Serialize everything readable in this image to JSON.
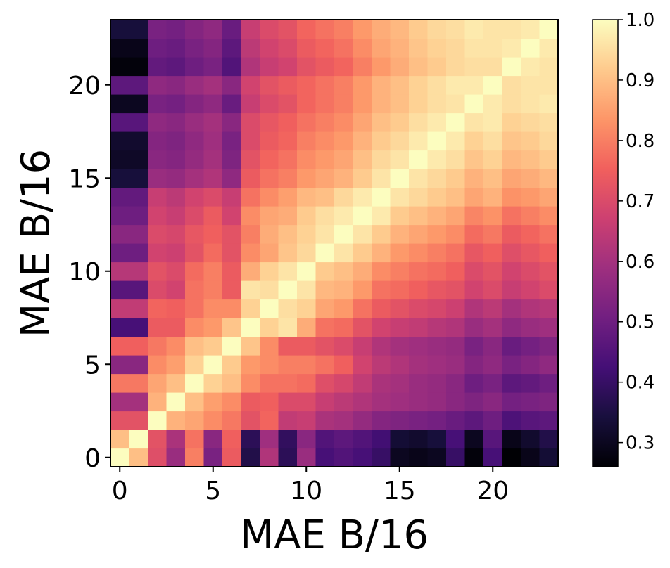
{
  "chart_data": {
    "type": "heatmap",
    "title": "",
    "xlabel": "MAE B/16",
    "ylabel": "MAE B/16",
    "n_rows": 24,
    "n_cols": 24,
    "origin": "lower",
    "xlim": [
      -0.5,
      23.5
    ],
    "ylim": [
      -0.5,
      23.5
    ],
    "x_ticks": [
      0,
      5,
      10,
      15,
      20
    ],
    "y_ticks": [
      0,
      5,
      10,
      15,
      20
    ],
    "colormap": "magma",
    "colormap_stops": [
      "#000004",
      "#180f3d",
      "#440f76",
      "#721f81",
      "#9e2f7f",
      "#cd4071",
      "#f1605d",
      "#fd9668",
      "#feca8d",
      "#fcfdbf"
    ],
    "colorbar": {
      "min": 0.26,
      "max": 1.0,
      "ticks": [
        0.3,
        0.4,
        0.5,
        0.6,
        0.7,
        0.8,
        0.9,
        1.0
      ]
    },
    "matrix_row0_bottom": [
      [
        1.0,
        0.9,
        0.71,
        0.58,
        0.8,
        0.52,
        0.74,
        0.36,
        0.62,
        0.38,
        0.58,
        0.43,
        0.45,
        0.43,
        0.4,
        0.3,
        0.29,
        0.3,
        0.4,
        0.27,
        0.43,
        0.26,
        0.29,
        0.33
      ],
      [
        0.9,
        1.0,
        0.72,
        0.61,
        0.78,
        0.55,
        0.75,
        0.38,
        0.59,
        0.39,
        0.55,
        0.45,
        0.47,
        0.45,
        0.42,
        0.33,
        0.32,
        0.34,
        0.43,
        0.3,
        0.46,
        0.29,
        0.32,
        0.36
      ],
      [
        0.72,
        0.72,
        1.0,
        0.88,
        0.86,
        0.82,
        0.79,
        0.72,
        0.76,
        0.65,
        0.66,
        0.61,
        0.6,
        0.57,
        0.54,
        0.53,
        0.52,
        0.51,
        0.49,
        0.47,
        0.5,
        0.44,
        0.46,
        0.47
      ],
      [
        0.6,
        0.6,
        0.88,
        1.0,
        0.9,
        0.85,
        0.82,
        0.74,
        0.75,
        0.7,
        0.7,
        0.66,
        0.64,
        0.62,
        0.6,
        0.59,
        0.58,
        0.57,
        0.55,
        0.53,
        0.55,
        0.51,
        0.52,
        0.53
      ],
      [
        0.79,
        0.79,
        0.86,
        0.9,
        1.0,
        0.93,
        0.9,
        0.82,
        0.78,
        0.78,
        0.77,
        0.71,
        0.69,
        0.65,
        0.61,
        0.6,
        0.58,
        0.57,
        0.55,
        0.5,
        0.52,
        0.47,
        0.48,
        0.5
      ],
      [
        0.55,
        0.55,
        0.82,
        0.85,
        0.93,
        1.0,
        0.92,
        0.84,
        0.82,
        0.8,
        0.8,
        0.78,
        0.75,
        0.68,
        0.64,
        0.62,
        0.6,
        0.59,
        0.58,
        0.54,
        0.56,
        0.52,
        0.54,
        0.56
      ],
      [
        0.75,
        0.75,
        0.79,
        0.82,
        0.9,
        0.92,
        1.0,
        0.91,
        0.82,
        0.74,
        0.74,
        0.72,
        0.7,
        0.66,
        0.62,
        0.6,
        0.59,
        0.58,
        0.57,
        0.52,
        0.55,
        0.49,
        0.51,
        0.53
      ],
      [
        0.43,
        0.43,
        0.74,
        0.74,
        0.82,
        0.84,
        0.91,
        1.0,
        0.93,
        0.96,
        0.87,
        0.78,
        0.77,
        0.72,
        0.68,
        0.66,
        0.65,
        0.63,
        0.62,
        0.58,
        0.6,
        0.56,
        0.58,
        0.59
      ],
      [
        0.65,
        0.65,
        0.76,
        0.75,
        0.78,
        0.82,
        0.82,
        0.93,
        1.0,
        0.95,
        0.93,
        0.86,
        0.84,
        0.78,
        0.74,
        0.72,
        0.7,
        0.69,
        0.67,
        0.62,
        0.64,
        0.6,
        0.62,
        0.63
      ],
      [
        0.46,
        0.46,
        0.7,
        0.68,
        0.78,
        0.8,
        0.74,
        0.96,
        0.95,
        1.0,
        0.96,
        0.89,
        0.88,
        0.84,
        0.78,
        0.77,
        0.75,
        0.73,
        0.72,
        0.68,
        0.7,
        0.66,
        0.68,
        0.7
      ],
      [
        0.63,
        0.63,
        0.72,
        0.7,
        0.77,
        0.8,
        0.74,
        0.87,
        0.93,
        0.96,
        1.0,
        0.92,
        0.9,
        0.87,
        0.82,
        0.8,
        0.78,
        0.77,
        0.75,
        0.7,
        0.72,
        0.68,
        0.7,
        0.72
      ],
      [
        0.5,
        0.5,
        0.68,
        0.67,
        0.72,
        0.77,
        0.72,
        0.82,
        0.86,
        0.91,
        0.94,
        1.0,
        0.96,
        0.92,
        0.88,
        0.84,
        0.82,
        0.8,
        0.78,
        0.73,
        0.75,
        0.71,
        0.73,
        0.75
      ],
      [
        0.55,
        0.55,
        0.7,
        0.69,
        0.73,
        0.75,
        0.72,
        0.8,
        0.87,
        0.9,
        0.93,
        0.96,
        1.0,
        0.96,
        0.92,
        0.88,
        0.86,
        0.84,
        0.82,
        0.77,
        0.79,
        0.74,
        0.76,
        0.78
      ],
      [
        0.5,
        0.5,
        0.68,
        0.66,
        0.7,
        0.74,
        0.68,
        0.82,
        0.86,
        0.87,
        0.92,
        0.95,
        0.97,
        1.0,
        0.97,
        0.92,
        0.9,
        0.88,
        0.86,
        0.81,
        0.83,
        0.78,
        0.8,
        0.82
      ],
      [
        0.48,
        0.48,
        0.66,
        0.64,
        0.68,
        0.7,
        0.66,
        0.78,
        0.82,
        0.85,
        0.89,
        0.9,
        0.94,
        0.97,
        1.0,
        0.96,
        0.94,
        0.92,
        0.9,
        0.86,
        0.88,
        0.83,
        0.84,
        0.86
      ],
      [
        0.34,
        0.34,
        0.58,
        0.57,
        0.6,
        0.62,
        0.56,
        0.74,
        0.78,
        0.8,
        0.84,
        0.86,
        0.88,
        0.92,
        0.96,
        1.0,
        0.96,
        0.94,
        0.92,
        0.88,
        0.9,
        0.86,
        0.87,
        0.89
      ],
      [
        0.31,
        0.31,
        0.55,
        0.54,
        0.57,
        0.6,
        0.53,
        0.72,
        0.76,
        0.78,
        0.82,
        0.84,
        0.86,
        0.9,
        0.94,
        0.96,
        1.0,
        0.97,
        0.95,
        0.91,
        0.93,
        0.89,
        0.9,
        0.92
      ],
      [
        0.32,
        0.32,
        0.54,
        0.53,
        0.56,
        0.59,
        0.52,
        0.7,
        0.74,
        0.76,
        0.8,
        0.82,
        0.84,
        0.88,
        0.92,
        0.94,
        0.97,
        1.0,
        0.97,
        0.93,
        0.95,
        0.91,
        0.92,
        0.94
      ],
      [
        0.46,
        0.46,
        0.56,
        0.55,
        0.58,
        0.6,
        0.55,
        0.7,
        0.73,
        0.75,
        0.78,
        0.8,
        0.82,
        0.86,
        0.9,
        0.92,
        0.95,
        0.97,
        1.0,
        0.96,
        0.97,
        0.93,
        0.94,
        0.95
      ],
      [
        0.3,
        0.3,
        0.52,
        0.51,
        0.54,
        0.56,
        0.49,
        0.66,
        0.7,
        0.72,
        0.76,
        0.78,
        0.8,
        0.84,
        0.88,
        0.9,
        0.93,
        0.95,
        0.96,
        1.0,
        0.97,
        0.95,
        0.96,
        0.97
      ],
      [
        0.47,
        0.47,
        0.56,
        0.55,
        0.58,
        0.6,
        0.55,
        0.68,
        0.72,
        0.74,
        0.76,
        0.78,
        0.8,
        0.84,
        0.88,
        0.9,
        0.93,
        0.95,
        0.97,
        0.97,
        1.0,
        0.95,
        0.96,
        0.96
      ],
      [
        0.27,
        0.27,
        0.48,
        0.47,
        0.5,
        0.52,
        0.45,
        0.62,
        0.66,
        0.68,
        0.72,
        0.74,
        0.76,
        0.8,
        0.84,
        0.87,
        0.9,
        0.92,
        0.94,
        0.95,
        0.95,
        1.0,
        0.97,
        0.96
      ],
      [
        0.29,
        0.29,
        0.5,
        0.49,
        0.52,
        0.54,
        0.47,
        0.64,
        0.68,
        0.7,
        0.74,
        0.76,
        0.78,
        0.82,
        0.86,
        0.88,
        0.91,
        0.93,
        0.94,
        0.96,
        0.96,
        0.97,
        1.0,
        0.97
      ],
      [
        0.34,
        0.34,
        0.52,
        0.51,
        0.54,
        0.56,
        0.49,
        0.66,
        0.7,
        0.72,
        0.76,
        0.78,
        0.8,
        0.84,
        0.87,
        0.89,
        0.92,
        0.94,
        0.95,
        0.97,
        0.96,
        0.96,
        0.97,
        1.0
      ]
    ]
  }
}
